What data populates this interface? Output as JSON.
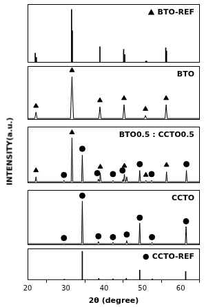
{
  "chart_data": {
    "type": "line",
    "x_label": "2θ (degree)",
    "y_label": "INTENSITY(a.u.)",
    "xlim": [
      20,
      65
    ],
    "xticks": [
      20,
      30,
      40,
      50,
      60
    ],
    "tick_labels": "x",
    "grid": false,
    "series": [
      {
        "name": "BTO-REF",
        "type": "bar",
        "marker": "triangle",
        "color": "#000000",
        "ylim": [
          0,
          110
        ],
        "x": [
          22.0,
          22.3,
          31.5,
          31.7,
          38.9,
          45.1,
          45.4,
          50.9,
          51.1,
          56.1,
          56.3
        ],
        "values": [
          18,
          10,
          100,
          60,
          30,
          25,
          15,
          3,
          3,
          28,
          22
        ]
      },
      {
        "name": "BTO",
        "type": "line",
        "color": "#000000",
        "ylim": [
          0,
          125
        ],
        "x": [
          20,
          21.9,
          22.2,
          22.5,
          31.2,
          31.6,
          32.0,
          38.6,
          38.9,
          39.2,
          44.9,
          45.2,
          45.5,
          50.5,
          50.8,
          51.1,
          55.9,
          56.2,
          56.5,
          65
        ],
        "values": [
          3,
          3,
          18,
          3,
          3,
          100,
          3,
          3,
          30,
          3,
          3,
          35,
          3,
          3,
          10,
          3,
          3,
          35,
          3,
          3
        ],
        "markers": [
          {
            "marker": "triangle",
            "x": [
              22.2,
              31.6,
              38.9,
              45.2,
              50.8,
              56.2
            ],
            "values": [
              32,
              115,
              45,
              50,
              25,
              50
            ]
          }
        ]
      },
      {
        "name": "BTO0.5 : CCTO0.5",
        "type": "line",
        "color": "#000000",
        "ylim": [
          0,
          125
        ],
        "x": [
          20,
          22.0,
          22.2,
          22.4,
          29.3,
          29.5,
          29.7,
          31.4,
          31.6,
          31.8,
          34.1,
          34.3,
          34.5,
          38.3,
          38.5,
          38.7,
          38.8,
          39.0,
          39.2,
          42.1,
          42.3,
          42.5,
          44.75,
          44.9,
          45.05,
          45.15,
          45.3,
          45.5,
          45.7,
          45.9,
          46.1,
          49.1,
          49.3,
          49.5,
          50.7,
          50.9,
          51.1,
          52.2,
          52.4,
          52.6,
          56.1,
          56.3,
          56.5,
          61.3,
          61.5,
          61.7,
          65
        ],
        "values": [
          3,
          3,
          14,
          3,
          3,
          6,
          3,
          3,
          100,
          3,
          3,
          62,
          3,
          3,
          9,
          3,
          3,
          22,
          3,
          3,
          6,
          3,
          3,
          8,
          3,
          3,
          20,
          3,
          3,
          14,
          3,
          3,
          28,
          3,
          3,
          6,
          3,
          3,
          6,
          3,
          3,
          25,
          3,
          3,
          28,
          3,
          3
        ],
        "markers": [
          {
            "marker": "triangle",
            "x": [
              22.2,
              31.6,
              39.0,
              45.3,
              50.9,
              56.3
            ],
            "values": [
              28,
              112,
              36,
              38,
              18,
              40
            ]
          },
          {
            "marker": "circle",
            "x": [
              29.5,
              34.3,
              38.2,
              42.3,
              44.8,
              49.3,
              52.4,
              61.5
            ],
            "values": [
              18,
              76,
              22,
              20,
              28,
              42,
              20,
              42
            ]
          }
        ]
      },
      {
        "name": "CCTO",
        "type": "line",
        "color": "#000000",
        "ylim": [
          0,
          125
        ],
        "x": [
          20,
          29.3,
          29.5,
          29.7,
          34.1,
          34.3,
          34.5,
          38.3,
          38.5,
          38.7,
          42.1,
          42.3,
          42.5,
          45.7,
          45.9,
          46.1,
          49.1,
          49.3,
          49.5,
          52.3,
          52.5,
          52.7,
          61.2,
          61.4,
          61.6,
          65
        ],
        "values": [
          3,
          3,
          4,
          3,
          3,
          100,
          3,
          3,
          8,
          3,
          3,
          6,
          3,
          3,
          10,
          3,
          3,
          50,
          3,
          3,
          6,
          3,
          3,
          42,
          3,
          3
        ],
        "markers": [
          {
            "marker": "circle",
            "x": [
              29.5,
              34.3,
              38.5,
              42.3,
              45.9,
              49.3,
              52.5,
              61.4
            ],
            "values": [
              16,
              112,
              20,
              18,
              24,
              62,
              18,
              54
            ]
          }
        ]
      },
      {
        "name": "CCTO-REF",
        "type": "bar",
        "marker": "circle",
        "color": "#000000",
        "ylim": [
          0,
          110
        ],
        "x": [
          29.6,
          34.3,
          38.6,
          42.3,
          45.8,
          49.3,
          52.6,
          61.3
        ],
        "values": [
          3,
          100,
          6,
          4,
          6,
          35,
          4,
          30
        ]
      }
    ]
  }
}
